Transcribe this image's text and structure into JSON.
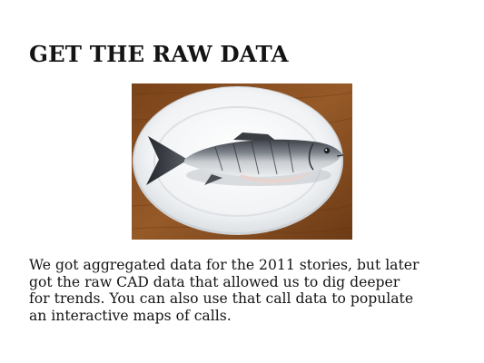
{
  "slide": {
    "title": "GET THE RAW DATA",
    "photo": {
      "subject": "fish-on-plate"
    },
    "body_lines": [
      "We got aggregated data for the 2011 stories, but later",
      "got the raw CAD data that allowed us to dig deeper",
      "for trends. You can also use that call data to populate",
      "an interactive maps of calls."
    ]
  },
  "colors": {
    "text": "#141414",
    "background": "#ffffff",
    "table_wood": "#8b4f21",
    "plate": "#f4f5f6",
    "fish_back": "#4a4e55",
    "fish_belly": "#d8dbdd"
  }
}
